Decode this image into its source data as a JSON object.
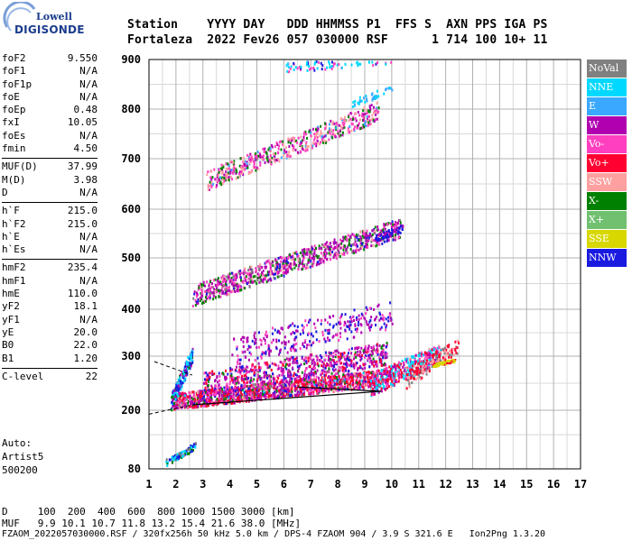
{
  "logo": {
    "lowell": "Lowell",
    "digisonde": "DIGISONDE"
  },
  "header": {
    "row1": "Station    YYYY DAY   DDD HHMMSS P1  FFS S  AXN PPS IGA PS",
    "row2": "Fortaleza  2022 Fev26 057 030000 RSF      1 714 100 10+ 11"
  },
  "params": [
    [
      {
        "name": "foF2",
        "value": "9.550"
      },
      {
        "name": "foF1",
        "value": "N/A"
      },
      {
        "name": "foF1p",
        "value": "N/A"
      },
      {
        "name": "foE",
        "value": "N/A"
      },
      {
        "name": "foEp",
        "value": "0.48"
      },
      {
        "name": "fxI",
        "value": "10.05"
      },
      {
        "name": "foEs",
        "value": "N/A"
      },
      {
        "name": "fmin",
        "value": "4.50"
      }
    ],
    [
      {
        "name": "MUF(D)",
        "value": "37.99"
      },
      {
        "name": "M(D)",
        "value": "3.98"
      },
      {
        "name": "D",
        "value": "N/A"
      }
    ],
    [
      {
        "name": "h`F",
        "value": "215.0"
      },
      {
        "name": "h`F2",
        "value": "215.0"
      },
      {
        "name": "h`E",
        "value": "N/A"
      },
      {
        "name": "h`Es",
        "value": "N/A"
      }
    ],
    [
      {
        "name": "hmF2",
        "value": "235.4"
      },
      {
        "name": "hmF1",
        "value": "N/A"
      },
      {
        "name": "hmE",
        "value": "110.0"
      },
      {
        "name": "yF2",
        "value": "18.1"
      },
      {
        "name": "yF1",
        "value": "N/A"
      },
      {
        "name": "yE",
        "value": "20.0"
      },
      {
        "name": "B0",
        "value": "22.0"
      },
      {
        "name": "B1",
        "value": "1.20"
      }
    ],
    [
      {
        "name": "C-level",
        "value": "22"
      }
    ]
  ],
  "auto": {
    "line1": "Auto:",
    "line2": "Artist5",
    "line3": "500200"
  },
  "legend": [
    {
      "label": "NoVal",
      "color": "#808080"
    },
    {
      "label": "NNE",
      "color": "#00d8ff"
    },
    {
      "label": "E",
      "color": "#3aa8ff"
    },
    {
      "label": "W",
      "color": "#b000b0"
    },
    {
      "label": "Vo-",
      "color": "#ff3fbf"
    },
    {
      "label": "Vo+",
      "color": "#ff0030"
    },
    {
      "label": "SSW",
      "color": "#ffa0a0"
    },
    {
      "label": "X-",
      "color": "#008000"
    },
    {
      "label": "X+",
      "color": "#70c070"
    },
    {
      "label": "SSE",
      "color": "#d8d800"
    },
    {
      "label": "NNW",
      "color": "#1a1ae0"
    }
  ],
  "axes": {
    "x_ticks": [
      "1",
      "2",
      "3",
      "4",
      "5",
      "6",
      "7",
      "8",
      "9",
      "10",
      "11",
      "12",
      "13",
      "14",
      "15",
      "16",
      "17"
    ],
    "y_ticks": [
      "80",
      "200",
      "300",
      "400",
      "500",
      "600",
      "700",
      "800",
      "900"
    ]
  },
  "footer": {
    "d_row": "D     100  200  400  600  800 1000 1500 3000 [km]",
    "muf_row": "MUF   9.9 10.1 10.7 11.8 13.2 15.4 21.6 38.0 [MHz]",
    "file_row": "FZAOM_2022057030000.RSF / 320fx256h 50 kHz 5.0 km / DPS-4 FZAOM 904 / 3.9 S 321.6 E   Ion2Png 1.3.20"
  }
}
